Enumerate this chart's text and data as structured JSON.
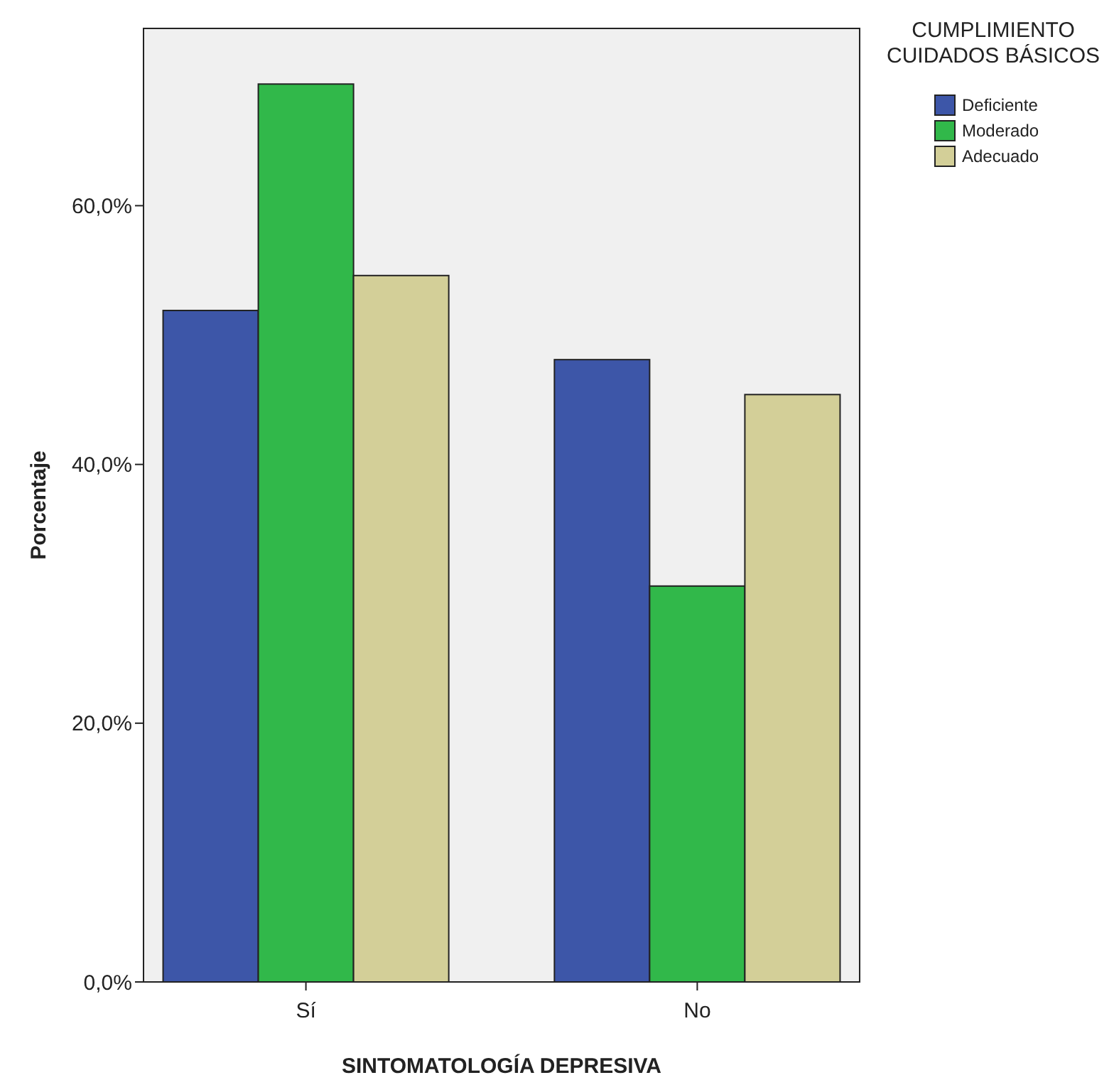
{
  "chart_data": {
    "type": "bar",
    "xlabel": "SINTOMATOLOGÍA DEPRESIVA",
    "ylabel": "Porcentaje",
    "legend_title": "CUMPLIMIENTO CUIDADOS BÁSICOS",
    "categories": [
      "Sí",
      "No"
    ],
    "series": [
      {
        "name": "Deficiente",
        "color": "#3d56a8",
        "values": [
          51.9,
          48.1
        ]
      },
      {
        "name": "Moderado",
        "color": "#31b84a",
        "values": [
          69.4,
          30.6
        ]
      },
      {
        "name": "Adecuado",
        "color": "#d3cf98",
        "values": [
          54.6,
          45.4
        ]
      }
    ],
    "ylim": [
      0,
      73.7
    ],
    "yticks": [
      {
        "value": 0,
        "label": "0,0%"
      },
      {
        "value": 20,
        "label": "20,0%"
      },
      {
        "value": 40,
        "label": "40,0%"
      },
      {
        "value": 60,
        "label": "60,0%"
      }
    ],
    "grid": false,
    "legend": "top right"
  }
}
